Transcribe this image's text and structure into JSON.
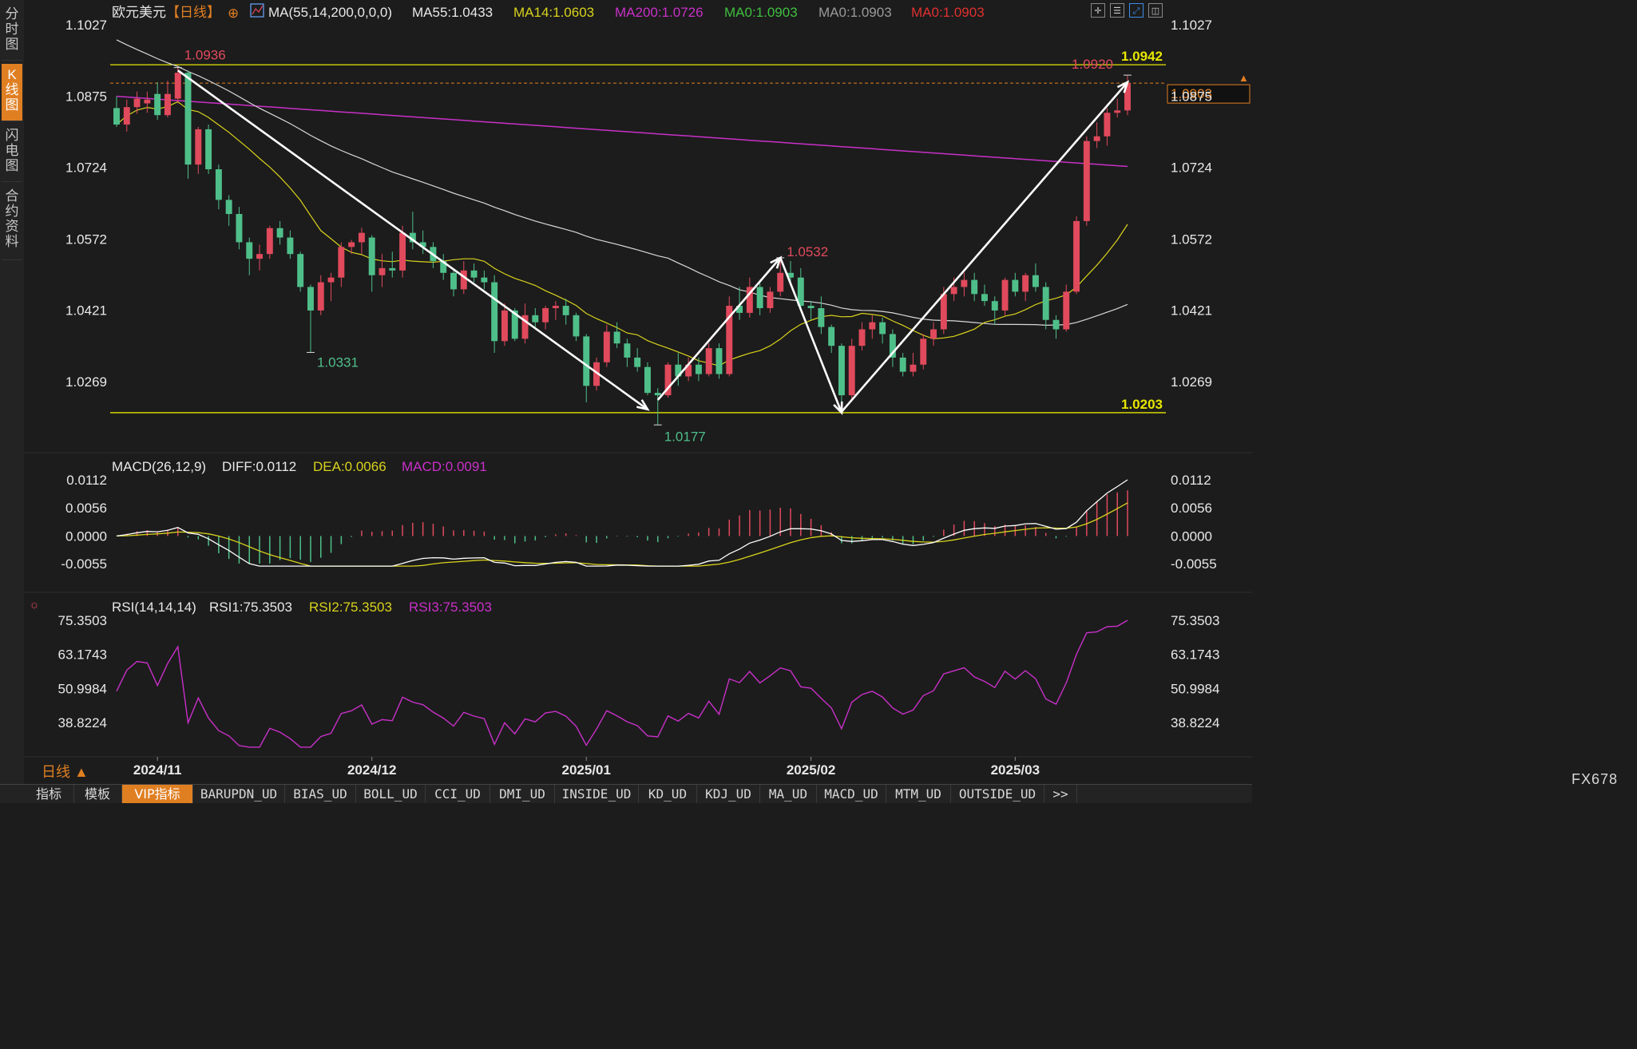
{
  "sidebar": {
    "items": [
      {
        "label": "分时图"
      },
      {
        "label": "K线图"
      },
      {
        "label": "闪电图"
      },
      {
        "label": "合约资料"
      }
    ]
  },
  "header": {
    "symbol": "欧元美元",
    "period_tag": "【日线】",
    "ma_params": "MA(55,14,200,0,0,0)",
    "ma55": "MA55:1.0433",
    "ma14": "MA14:1.0603",
    "ma200": "MA200:1.0726",
    "ma0_a": "MA0:1.0903",
    "ma0_b": "MA0:1.0903",
    "ma0_c": "MA0:1.0903"
  },
  "price_axis": [
    "1.1027",
    "1.0875",
    "1.0724",
    "1.0572",
    "1.0421",
    "1.0269"
  ],
  "macd_header": {
    "params": "MACD(26,12,9)",
    "diff": "DIFF:0.0112",
    "dea": "DEA:0.0066",
    "macd": "MACD:0.0091"
  },
  "macd_axis": [
    "0.0112",
    "0.0056",
    "0.0000",
    "-0.0055"
  ],
  "rsi_header": {
    "params": "RSI(14,14,14)",
    "rsi1": "RSI1:75.3503",
    "rsi2": "RSI2:75.3503",
    "rsi3": "RSI3:75.3503"
  },
  "rsi_axis": [
    "75.3503",
    "63.1743",
    "50.9984",
    "38.8224"
  ],
  "date_axis": [
    "2024/11",
    "2024/12",
    "2025/01",
    "2025/02",
    "2025/03"
  ],
  "period_label": "日线 ▲",
  "brand": "FX678",
  "bottom_tabs": [
    "指标",
    "模板",
    "VIP指标",
    "BARUPDN_UD",
    "BIAS_UD",
    "BOLL_UD",
    "CCI_UD",
    "DMI_UD",
    "INSIDE_UD",
    "KD_UD",
    "KDJ_UD",
    "MA_UD",
    "MACD_UD",
    "MTM_UD",
    "OUTSIDE_UD",
    ">>"
  ],
  "colors": {
    "up": "#e04a5c",
    "down": "#4fbf8a",
    "ma55": "#d8d8d8",
    "ma14": "#d9d21c",
    "ma200": "#c830c8",
    "level": "#e6e600",
    "accent": "#e07f22"
  },
  "chart_data": [
    {
      "type": "candlestick",
      "title": "欧元美元【日线】",
      "ylim": [
        1.0177,
        1.1027
      ],
      "levels": [
        {
          "value": 1.0942,
          "label": "1.0942"
        },
        {
          "value": 1.0203,
          "label": "1.0203"
        }
      ],
      "current_price": 1.0903,
      "annotations": [
        {
          "label": "1.0936",
          "value": 1.0936
        },
        {
          "label": "1.0331",
          "value": 1.0331
        },
        {
          "label": "1.0177",
          "value": 1.0177
        },
        {
          "label": "1.0532",
          "value": 1.0532
        },
        {
          "label": "1.0920",
          "value": 1.092
        }
      ],
      "candles": [
        {
          "d": "2024-10-28",
          "o": 1.085,
          "h": 1.0875,
          "l": 1.081,
          "c": 1.0815
        },
        {
          "d": "2024-10-29",
          "o": 1.0815,
          "h": 1.0868,
          "l": 1.08,
          "c": 1.0852
        },
        {
          "d": "2024-10-30",
          "o": 1.0852,
          "h": 1.0885,
          "l": 1.0838,
          "c": 1.087
        },
        {
          "d": "2024-10-31",
          "o": 1.086,
          "h": 1.0885,
          "l": 1.084,
          "c": 1.0868
        },
        {
          "d": "2024-11-01",
          "o": 1.088,
          "h": 1.0905,
          "l": 1.0825,
          "c": 1.0835
        },
        {
          "d": "2024-11-04",
          "o": 1.0835,
          "h": 1.0908,
          "l": 1.083,
          "c": 1.088
        },
        {
          "d": "2024-11-05",
          "o": 1.087,
          "h": 1.0936,
          "l": 1.086,
          "c": 1.0925
        },
        {
          "d": "2024-11-06",
          "o": 1.0925,
          "h": 1.093,
          "l": 1.07,
          "c": 1.073
        },
        {
          "d": "2024-11-07",
          "o": 1.073,
          "h": 1.081,
          "l": 1.071,
          "c": 1.0805
        },
        {
          "d": "2024-11-08",
          "o": 1.0805,
          "h": 1.0815,
          "l": 1.071,
          "c": 1.072
        },
        {
          "d": "2024-11-11",
          "o": 1.072,
          "h": 1.073,
          "l": 1.0635,
          "c": 1.0655
        },
        {
          "d": "2024-11-12",
          "o": 1.0655,
          "h": 1.0665,
          "l": 1.06,
          "c": 1.0625
        },
        {
          "d": "2024-11-13",
          "o": 1.0625,
          "h": 1.064,
          "l": 1.055,
          "c": 1.0565
        },
        {
          "d": "2024-11-14",
          "o": 1.0565,
          "h": 1.0575,
          "l": 1.0495,
          "c": 1.053
        },
        {
          "d": "2024-11-15",
          "o": 1.053,
          "h": 1.056,
          "l": 1.0505,
          "c": 1.054
        },
        {
          "d": "2024-11-18",
          "o": 1.054,
          "h": 1.06,
          "l": 1.053,
          "c": 1.0595
        },
        {
          "d": "2024-11-19",
          "o": 1.0595,
          "h": 1.061,
          "l": 1.056,
          "c": 1.0575
        },
        {
          "d": "2024-11-20",
          "o": 1.0575,
          "h": 1.059,
          "l": 1.053,
          "c": 1.054
        },
        {
          "d": "2024-11-21",
          "o": 1.054,
          "h": 1.0545,
          "l": 1.046,
          "c": 1.047
        },
        {
          "d": "2024-11-22",
          "o": 1.047,
          "h": 1.0475,
          "l": 1.0331,
          "c": 1.042
        },
        {
          "d": "2024-11-25",
          "o": 1.042,
          "h": 1.0495,
          "l": 1.041,
          "c": 1.048
        },
        {
          "d": "2024-11-26",
          "o": 1.048,
          "h": 1.05,
          "l": 1.044,
          "c": 1.049
        },
        {
          "d": "2024-11-27",
          "o": 1.049,
          "h": 1.0565,
          "l": 1.047,
          "c": 1.0555
        },
        {
          "d": "2024-11-28",
          "o": 1.0555,
          "h": 1.057,
          "l": 1.054,
          "c": 1.0565
        },
        {
          "d": "2024-11-29",
          "o": 1.0565,
          "h": 1.0596,
          "l": 1.054,
          "c": 1.0585
        },
        {
          "d": "2024-12-02",
          "o": 1.0575,
          "h": 1.058,
          "l": 1.046,
          "c": 1.0495
        },
        {
          "d": "2024-12-03",
          "o": 1.0495,
          "h": 1.054,
          "l": 1.047,
          "c": 1.051
        },
        {
          "d": "2024-12-04",
          "o": 1.051,
          "h": 1.0545,
          "l": 1.049,
          "c": 1.0505
        },
        {
          "d": "2024-12-05",
          "o": 1.0505,
          "h": 1.06,
          "l": 1.049,
          "c": 1.0585
        },
        {
          "d": "2024-12-06",
          "o": 1.0585,
          "h": 1.063,
          "l": 1.055,
          "c": 1.0565
        },
        {
          "d": "2024-12-09",
          "o": 1.0565,
          "h": 1.059,
          "l": 1.054,
          "c": 1.0555
        },
        {
          "d": "2024-12-10",
          "o": 1.0555,
          "h": 1.0565,
          "l": 1.051,
          "c": 1.0525
        },
        {
          "d": "2024-12-11",
          "o": 1.0525,
          "h": 1.054,
          "l": 1.0485,
          "c": 1.05
        },
        {
          "d": "2024-12-12",
          "o": 1.05,
          "h": 1.051,
          "l": 1.045,
          "c": 1.0465
        },
        {
          "d": "2024-12-13",
          "o": 1.0465,
          "h": 1.0525,
          "l": 1.0455,
          "c": 1.0505
        },
        {
          "d": "2024-12-16",
          "o": 1.0505,
          "h": 1.052,
          "l": 1.048,
          "c": 1.049
        },
        {
          "d": "2024-12-17",
          "o": 1.049,
          "h": 1.0505,
          "l": 1.0465,
          "c": 1.048
        },
        {
          "d": "2024-12-18",
          "o": 1.048,
          "h": 1.0495,
          "l": 1.033,
          "c": 1.0355
        },
        {
          "d": "2024-12-19",
          "o": 1.0355,
          "h": 1.0435,
          "l": 1.0345,
          "c": 1.042
        },
        {
          "d": "2024-12-20",
          "o": 1.042,
          "h": 1.0425,
          "l": 1.0355,
          "c": 1.036
        },
        {
          "d": "2024-12-23",
          "o": 1.036,
          "h": 1.0435,
          "l": 1.035,
          "c": 1.041
        },
        {
          "d": "2024-12-24",
          "o": 1.041,
          "h": 1.0425,
          "l": 1.0385,
          "c": 1.0395
        },
        {
          "d": "2024-12-26",
          "o": 1.0395,
          "h": 1.043,
          "l": 1.038,
          "c": 1.0425
        },
        {
          "d": "2024-12-27",
          "o": 1.0425,
          "h": 1.044,
          "l": 1.04,
          "c": 1.043
        },
        {
          "d": "2024-12-30",
          "o": 1.043,
          "h": 1.0445,
          "l": 1.039,
          "c": 1.041
        },
        {
          "d": "2024-12-31",
          "o": 1.041,
          "h": 1.0415,
          "l": 1.0355,
          "c": 1.0365
        },
        {
          "d": "2025-01-02",
          "o": 1.0365,
          "h": 1.037,
          "l": 1.0225,
          "c": 1.026
        },
        {
          "d": "2025-01-03",
          "o": 1.026,
          "h": 1.032,
          "l": 1.025,
          "c": 1.031
        },
        {
          "d": "2025-01-06",
          "o": 1.031,
          "h": 1.039,
          "l": 1.03,
          "c": 1.0375
        },
        {
          "d": "2025-01-07",
          "o": 1.0375,
          "h": 1.0395,
          "l": 1.034,
          "c": 1.035
        },
        {
          "d": "2025-01-08",
          "o": 1.035,
          "h": 1.036,
          "l": 1.03,
          "c": 1.032
        },
        {
          "d": "2025-01-09",
          "o": 1.032,
          "h": 1.034,
          "l": 1.029,
          "c": 1.03
        },
        {
          "d": "2025-01-10",
          "o": 1.03,
          "h": 1.031,
          "l": 1.024,
          "c": 1.0245
        },
        {
          "d": "2025-01-13",
          "o": 1.0245,
          "h": 1.0255,
          "l": 1.0177,
          "c": 1.024
        },
        {
          "d": "2025-01-14",
          "o": 1.024,
          "h": 1.031,
          "l": 1.0235,
          "c": 1.0305
        },
        {
          "d": "2025-01-15",
          "o": 1.0305,
          "h": 1.033,
          "l": 1.026,
          "c": 1.028
        },
        {
          "d": "2025-01-16",
          "o": 1.028,
          "h": 1.032,
          "l": 1.027,
          "c": 1.0305
        },
        {
          "d": "2025-01-17",
          "o": 1.0305,
          "h": 1.032,
          "l": 1.027,
          "c": 1.0285
        },
        {
          "d": "2025-01-20",
          "o": 1.0285,
          "h": 1.035,
          "l": 1.028,
          "c": 1.034
        },
        {
          "d": "2025-01-21",
          "o": 1.034,
          "h": 1.035,
          "l": 1.0275,
          "c": 1.0285
        },
        {
          "d": "2025-01-22",
          "o": 1.0285,
          "h": 1.045,
          "l": 1.028,
          "c": 1.043
        },
        {
          "d": "2025-01-23",
          "o": 1.043,
          "h": 1.047,
          "l": 1.04,
          "c": 1.0415
        },
        {
          "d": "2025-01-24",
          "o": 1.0415,
          "h": 1.049,
          "l": 1.0405,
          "c": 1.047
        },
        {
          "d": "2025-01-27",
          "o": 1.047,
          "h": 1.0485,
          "l": 1.041,
          "c": 1.0425
        },
        {
          "d": "2025-01-28",
          "o": 1.0425,
          "h": 1.047,
          "l": 1.0415,
          "c": 1.046
        },
        {
          "d": "2025-01-29",
          "o": 1.046,
          "h": 1.0532,
          "l": 1.045,
          "c": 1.05
        },
        {
          "d": "2025-01-30",
          "o": 1.05,
          "h": 1.0525,
          "l": 1.048,
          "c": 1.049
        },
        {
          "d": "2025-01-31",
          "o": 1.049,
          "h": 1.051,
          "l": 1.042,
          "c": 1.043
        },
        {
          "d": "2025-02-03",
          "o": 1.043,
          "h": 1.044,
          "l": 1.04,
          "c": 1.0425
        },
        {
          "d": "2025-02-04",
          "o": 1.0425,
          "h": 1.045,
          "l": 1.037,
          "c": 1.0385
        },
        {
          "d": "2025-02-05",
          "o": 1.0385,
          "h": 1.039,
          "l": 1.033,
          "c": 1.0345
        },
        {
          "d": "2025-02-06",
          "o": 1.0345,
          "h": 1.035,
          "l": 1.0203,
          "c": 1.024
        },
        {
          "d": "2025-02-07",
          "o": 1.024,
          "h": 1.036,
          "l": 1.023,
          "c": 1.0345
        },
        {
          "d": "2025-02-10",
          "o": 1.0345,
          "h": 1.0395,
          "l": 1.0335,
          "c": 1.038
        },
        {
          "d": "2025-02-11",
          "o": 1.038,
          "h": 1.041,
          "l": 1.036,
          "c": 1.0395
        },
        {
          "d": "2025-02-12",
          "o": 1.0395,
          "h": 1.0405,
          "l": 1.035,
          "c": 1.037
        },
        {
          "d": "2025-02-13",
          "o": 1.037,
          "h": 1.038,
          "l": 1.03,
          "c": 1.032
        },
        {
          "d": "2025-02-14",
          "o": 1.032,
          "h": 1.033,
          "l": 1.028,
          "c": 1.029
        },
        {
          "d": "2025-02-17",
          "o": 1.029,
          "h": 1.033,
          "l": 1.028,
          "c": 1.0305
        },
        {
          "d": "2025-02-18",
          "o": 1.0305,
          "h": 1.037,
          "l": 1.0295,
          "c": 1.036
        },
        {
          "d": "2025-02-19",
          "o": 1.036,
          "h": 1.0395,
          "l": 1.0345,
          "c": 1.038
        },
        {
          "d": "2025-02-20",
          "o": 1.038,
          "h": 1.047,
          "l": 1.037,
          "c": 1.0455
        },
        {
          "d": "2025-02-21",
          "o": 1.0455,
          "h": 1.049,
          "l": 1.044,
          "c": 1.047
        },
        {
          "d": "2025-02-24",
          "o": 1.047,
          "h": 1.05,
          "l": 1.045,
          "c": 1.0485
        },
        {
          "d": "2025-02-25",
          "o": 1.0485,
          "h": 1.05,
          "l": 1.044,
          "c": 1.0455
        },
        {
          "d": "2025-02-26",
          "o": 1.0455,
          "h": 1.0475,
          "l": 1.043,
          "c": 1.044
        },
        {
          "d": "2025-02-27",
          "o": 1.044,
          "h": 1.045,
          "l": 1.039,
          "c": 1.042
        },
        {
          "d": "2025-02-28",
          "o": 1.042,
          "h": 1.049,
          "l": 1.041,
          "c": 1.0485
        },
        {
          "d": "2025-03-03",
          "o": 1.0485,
          "h": 1.05,
          "l": 1.045,
          "c": 1.046
        },
        {
          "d": "2025-03-04",
          "o": 1.046,
          "h": 1.05,
          "l": 1.044,
          "c": 1.0495
        },
        {
          "d": "2025-03-05",
          "o": 1.0495,
          "h": 1.052,
          "l": 1.046,
          "c": 1.047
        },
        {
          "d": "2025-03-06",
          "o": 1.047,
          "h": 1.048,
          "l": 1.038,
          "c": 1.04
        },
        {
          "d": "2025-03-07",
          "o": 1.04,
          "h": 1.041,
          "l": 1.036,
          "c": 1.038
        },
        {
          "d": "2025-03-10",
          "o": 1.038,
          "h": 1.0475,
          "l": 1.0375,
          "c": 1.046
        },
        {
          "d": "2025-03-11",
          "o": 1.046,
          "h": 1.062,
          "l": 1.0455,
          "c": 1.061
        },
        {
          "d": "2025-03-12",
          "o": 1.061,
          "h": 1.079,
          "l": 1.06,
          "c": 1.078
        },
        {
          "d": "2025-03-13",
          "o": 1.078,
          "h": 1.082,
          "l": 1.0765,
          "c": 1.079
        },
        {
          "d": "2025-03-14",
          "o": 1.079,
          "h": 1.085,
          "l": 1.077,
          "c": 1.084
        },
        {
          "d": "2025-03-17",
          "o": 1.084,
          "h": 1.087,
          "l": 1.083,
          "c": 1.0845
        },
        {
          "d": "2025-03-18",
          "o": 1.0845,
          "h": 1.092,
          "l": 1.0835,
          "c": 1.0903
        }
      ],
      "ma14_end": 1.0603,
      "ma55_end": 1.0433,
      "ma200_end": 1.0726
    },
    {
      "type": "macd",
      "params": "MACD(26,12,9)",
      "ylim": [
        -0.006,
        0.0112
      ],
      "end_values": {
        "diff": 0.0112,
        "dea": 0.0066,
        "macd": 0.0091
      }
    },
    {
      "type": "line",
      "params": "RSI(14,14,14)",
      "ylim": [
        30,
        80
      ],
      "end_value": 75.3503
    }
  ]
}
